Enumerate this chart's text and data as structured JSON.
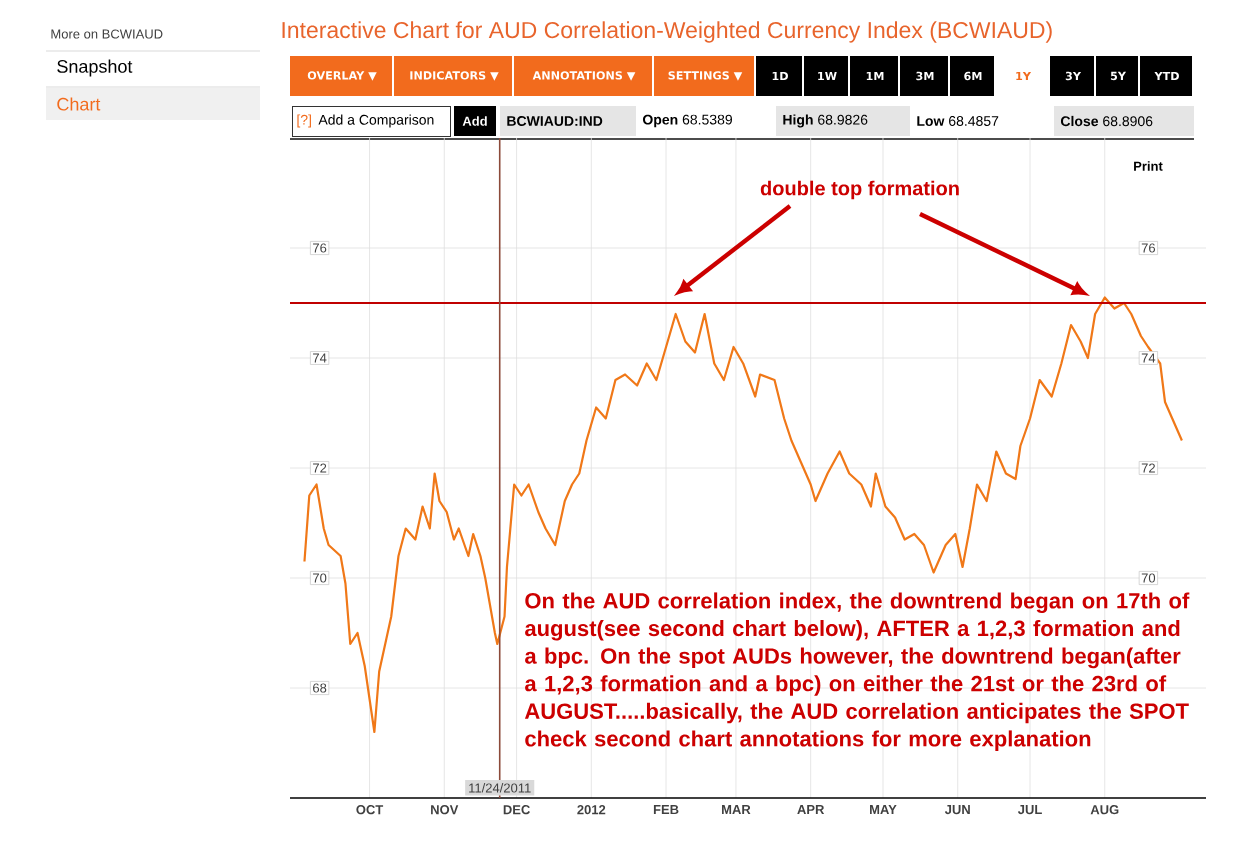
{
  "chart_data": {
    "type": "line",
    "title": "Interactive Chart for AUD Correlation-Weighted Currency Index (BCWIAUD)",
    "x": [
      "2011-09-04",
      "2011-09-06",
      "2011-09-09",
      "2011-09-12",
      "2011-09-14",
      "2011-09-19",
      "2011-09-21",
      "2011-09-23",
      "2011-09-26",
      "2011-09-29",
      "2011-10-03",
      "2011-10-05",
      "2011-10-08",
      "2011-10-10",
      "2011-10-13",
      "2011-10-16",
      "2011-10-20",
      "2011-10-23",
      "2011-10-26",
      "2011-10-28",
      "2011-10-30",
      "2011-11-02",
      "2011-11-05",
      "2011-11-07",
      "2011-11-11",
      "2011-11-13",
      "2011-11-16",
      "2011-11-18",
      "2011-11-22",
      "2011-11-23",
      "2011-11-26",
      "2011-11-27",
      "2011-11-30",
      "2011-12-03",
      "2011-12-06",
      "2011-12-10",
      "2011-12-13",
      "2011-12-17",
      "2011-12-21",
      "2011-12-24",
      "2011-12-27",
      "2011-12-30",
      "2012-01-03",
      "2012-01-07",
      "2012-01-11",
      "2012-01-15",
      "2012-01-20",
      "2012-01-24",
      "2012-01-28",
      "2012-02-01",
      "2012-02-05",
      "2012-02-09",
      "2012-02-13",
      "2012-02-17",
      "2012-02-21",
      "2012-02-25",
      "2012-02-29",
      "2012-03-04",
      "2012-03-09",
      "2012-03-11",
      "2012-03-17",
      "2012-03-21",
      "2012-03-24",
      "2012-03-28",
      "2012-04-01",
      "2012-04-03",
      "2012-04-08",
      "2012-04-13",
      "2012-04-17",
      "2012-04-22",
      "2012-04-26",
      "2012-04-28",
      "2012-05-02",
      "2012-05-06",
      "2012-05-10",
      "2012-05-14",
      "2012-05-18",
      "2012-05-22",
      "2012-05-27",
      "2012-05-31",
      "2012-06-03",
      "2012-06-06",
      "2012-06-09",
      "2012-06-13",
      "2012-06-17",
      "2012-06-21",
      "2012-06-25",
      "2012-06-27",
      "2012-07-01",
      "2012-07-05",
      "2012-07-10",
      "2012-07-14",
      "2012-07-18",
      "2012-07-22",
      "2012-07-25",
      "2012-07-28",
      "2012-08-01",
      "2012-08-05",
      "2012-08-09",
      "2012-08-12",
      "2012-08-16",
      "2012-08-19",
      "2012-08-24",
      "2012-08-26",
      "2012-08-29",
      "2012-09-02"
    ],
    "series": [
      {
        "color": "#f07818",
        "values": [
          70.3,
          71.5,
          71.7,
          70.9,
          70.6,
          70.4,
          69.9,
          68.8,
          69.0,
          68.4,
          67.2,
          68.3,
          68.9,
          69.3,
          70.4,
          70.9,
          70.7,
          71.3,
          70.9,
          71.9,
          71.4,
          71.2,
          70.7,
          70.9,
          70.4,
          70.8,
          70.4,
          70.0,
          69.0,
          68.8,
          69.3,
          70.2,
          71.7,
          71.5,
          71.7,
          71.2,
          70.9,
          70.6,
          71.4,
          71.7,
          71.9,
          72.5,
          73.1,
          72.9,
          73.6,
          73.7,
          73.5,
          73.9,
          73.6,
          74.2,
          74.8,
          74.3,
          74.1,
          74.8,
          73.9,
          73.6,
          74.2,
          73.9,
          73.3,
          73.7,
          73.6,
          72.9,
          72.5,
          72.1,
          71.7,
          71.4,
          71.9,
          72.3,
          71.9,
          71.7,
          71.3,
          71.9,
          71.3,
          71.1,
          70.7,
          70.8,
          70.6,
          70.1,
          70.6,
          70.8,
          70.2,
          70.9,
          71.7,
          71.4,
          72.3,
          71.9,
          71.8,
          72.4,
          72.9,
          73.6,
          73.3,
          73.9,
          74.6,
          74.3,
          74.0,
          74.8,
          75.1,
          74.9,
          75.0,
          74.8,
          74.4,
          74.2,
          73.9,
          73.2,
          72.9,
          72.5
        ]
      }
    ],
    "xlim": [
      "2011-08-29",
      "2012-09-12"
    ],
    "xticks": [
      {
        "value": "2011-10-01",
        "label": "OCT"
      },
      {
        "value": "2011-11-01",
        "label": "NOV"
      },
      {
        "value": "2011-12-01",
        "label": "DEC"
      },
      {
        "value": "2012-01-01",
        "label": "2012"
      },
      {
        "value": "2012-02-01",
        "label": "FEB"
      },
      {
        "value": "2012-03-01",
        "label": "MAR"
      },
      {
        "value": "2012-04-01",
        "label": "APR"
      },
      {
        "value": "2012-05-01",
        "label": "MAY"
      },
      {
        "value": "2012-06-01",
        "label": "JUN"
      },
      {
        "value": "2012-07-01",
        "label": "JUL"
      },
      {
        "value": "2012-08-01",
        "label": "AUG"
      }
    ],
    "ylim": [
      66,
      78
    ],
    "yticks": [
      68,
      70,
      72,
      74,
      76
    ],
    "y2lim": [
      66,
      78
    ],
    "y2ticks": [
      70,
      72,
      74,
      76
    ],
    "grid": true,
    "marker": "none",
    "line_style": "solid",
    "ref_lines": [
      {
        "axis": "y",
        "value": 75.0,
        "color": "#c00000"
      },
      {
        "axis": "x",
        "value": "2011-11-24",
        "label": "11/24/2011",
        "color": "#8b4a3a"
      }
    ],
    "annotations": [
      "More on BCWIAUD",
      "Snapshot",
      "Chart",
      "OVERLAY ▼",
      "INDICATORS ▼",
      "ANNOTATIONS ▼",
      "SETTINGS ▼",
      "1D",
      "1W",
      "1M",
      "3M",
      "6M",
      "1Y",
      "3Y",
      "5Y",
      "YTD",
      "[?]",
      "Add a Comparison",
      "Add",
      "BCWIAUD:IND",
      "**Open** 68.5389",
      "**High** 68.9826",
      "**Low** 68.4857",
      "**Close** 68.8906",
      "Print",
      "double top formation",
      "On the AUD correlation index, the downtrend began on 17th of august(see second chart below), AFTER a 1,2,3 formation and a bpc. On the spot AUDs however, the downtrend began(after a 1,2,3 formation and a bpc) on either the 21st or the 23rd of AUGUST.....basically, the AUD correlation anticipates the SPOT check second chart annotations for more explanation"
    ]
  }
}
